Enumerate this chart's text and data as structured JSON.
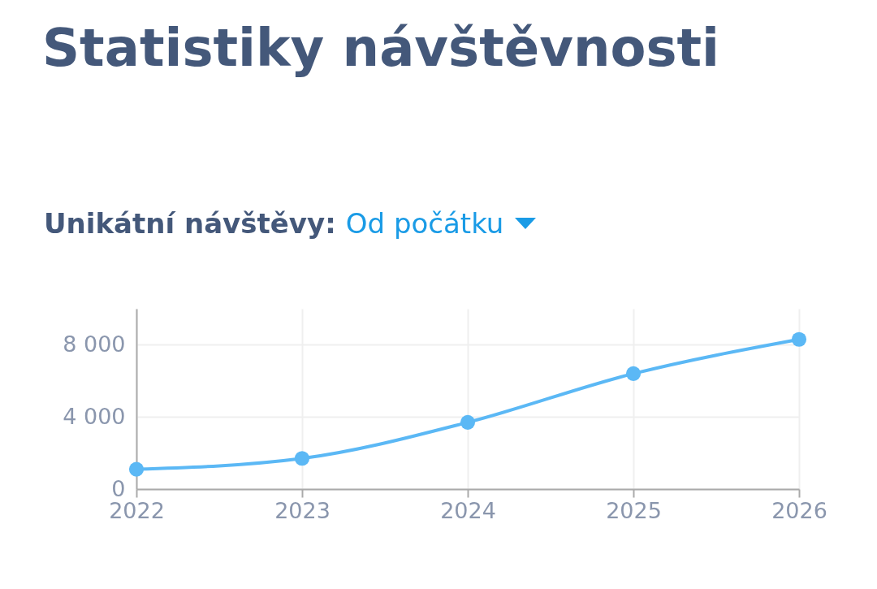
{
  "chart_data": {
    "type": "line",
    "title": "Statistiky návštěvnosti",
    "subtitle": "Unikátní návštěvy:",
    "annotations": [
      "Od počátku"
    ],
    "x": [
      2022,
      2023,
      2024,
      2025,
      2026
    ],
    "series": [
      {
        "color": "#5bb8f5",
        "values": [
          1100,
          1700,
          3700,
          6400,
          8300
        ]
      }
    ],
    "xlim": [
      2022,
      2026
    ],
    "xticks": [
      2022,
      2023,
      2024,
      2025,
      2026
    ],
    "ylim": [
      0,
      10000
    ],
    "yticks": [
      0,
      {
        "value": 4000,
        "label": "4 000"
      },
      {
        "value": 8000,
        "label": "8 000"
      }
    ],
    "grid": true,
    "marker": "circle",
    "line_style": "solid"
  }
}
